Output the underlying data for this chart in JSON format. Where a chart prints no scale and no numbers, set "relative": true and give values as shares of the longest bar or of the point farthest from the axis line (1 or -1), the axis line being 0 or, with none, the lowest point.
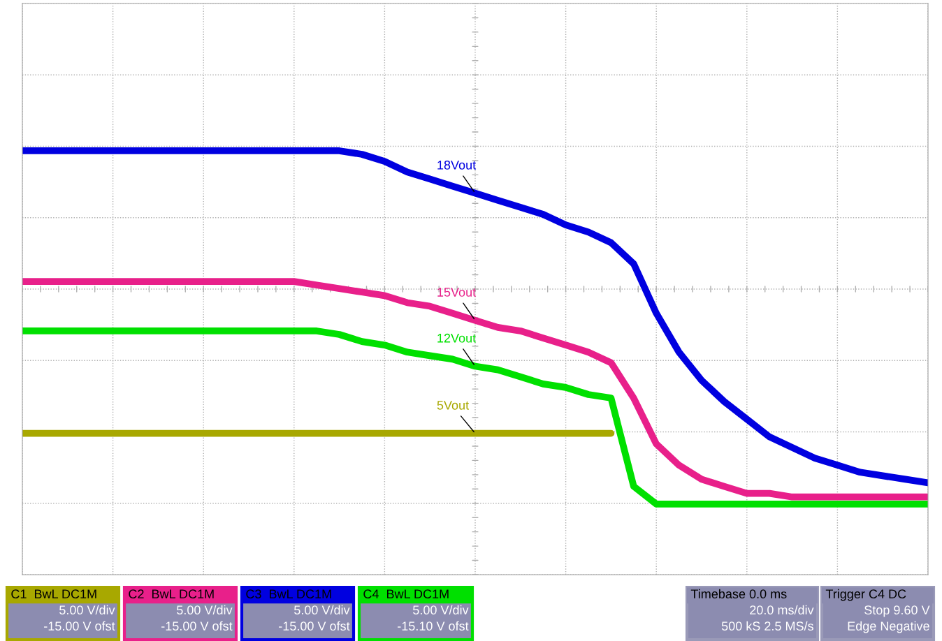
{
  "chart_data": {
    "type": "line",
    "relative": true,
    "grid": true,
    "legend": false,
    "categories": [
      null,
      null,
      null,
      null,
      null,
      null,
      null,
      null,
      null,
      null,
      null,
      null,
      null,
      null,
      null,
      null,
      null,
      null,
      null,
      null,
      null,
      null,
      null,
      null,
      null,
      null,
      null,
      null,
      null,
      null,
      null,
      null,
      null,
      null,
      null,
      null,
      null,
      null,
      null,
      null,
      null
    ],
    "series": [
      {
        "name": "5Vout",
        "color": "#a8a800",
        "values": [
          0.2,
          0.2,
          0.2,
          0.2,
          0.2,
          0.2,
          0.2,
          0.2,
          0.2,
          0.2,
          0.2,
          0.2,
          0.2,
          0.2,
          0.2,
          0.2,
          0.2,
          0.2,
          0.2,
          0.2,
          0.2,
          0.2,
          0.2,
          0.2,
          0.2,
          0.2,
          0.2,
          null,
          null,
          null,
          null,
          null,
          null,
          null,
          null,
          null,
          null,
          null,
          null,
          null,
          null
        ]
      },
      {
        "name": "15Vout",
        "color": "#e8208a",
        "values": [
          0.63,
          0.63,
          0.63,
          0.63,
          0.63,
          0.63,
          0.63,
          0.63,
          0.63,
          0.63,
          0.63,
          0.63,
          0.63,
          0.62,
          0.61,
          0.6,
          0.59,
          0.57,
          0.56,
          0.54,
          0.52,
          0.5,
          0.49,
          0.47,
          0.45,
          0.43,
          0.4,
          0.3,
          0.17,
          0.11,
          0.07,
          0.05,
          0.03,
          0.03,
          0.02,
          0.02,
          0.02,
          0.02,
          0.02,
          0.02,
          0.02
        ]
      },
      {
        "name": "18Vout",
        "color": "#0000e0",
        "values": [
          1.0,
          1.0,
          1.0,
          1.0,
          1.0,
          1.0,
          1.0,
          1.0,
          1.0,
          1.0,
          1.0,
          1.0,
          1.0,
          1.0,
          1.0,
          0.99,
          0.97,
          0.94,
          0.92,
          0.9,
          0.88,
          0.86,
          0.84,
          0.82,
          0.79,
          0.77,
          0.74,
          0.68,
          0.54,
          0.43,
          0.35,
          0.29,
          0.24,
          0.19,
          0.16,
          0.13,
          0.11,
          0.09,
          0.08,
          0.07,
          0.06
        ]
      },
      {
        "name": "12Vout",
        "color": "#00e000",
        "values": [
          0.49,
          0.49,
          0.49,
          0.49,
          0.49,
          0.49,
          0.49,
          0.49,
          0.49,
          0.49,
          0.49,
          0.49,
          0.49,
          0.49,
          0.48,
          0.46,
          0.45,
          0.43,
          0.42,
          0.41,
          0.39,
          0.38,
          0.36,
          0.34,
          0.33,
          0.31,
          0.3,
          0.05,
          0,
          0,
          0,
          0,
          0,
          0,
          0,
          0,
          0,
          0,
          0,
          0,
          0
        ]
      }
    ],
    "annotations": [
      "C1  BwL DC1M\n5.00 V/div\n-15.00 V ofst",
      "C2  BwL DC1M\n5.00 V/div\n-15.00 V ofst",
      "C3  BwL DC1M\n5.00 V/div\n-15.00 V ofst",
      "C4  BwL DC1M\n5.00 V/div\n-15.10 V ofst",
      "Timebase 0.0 ms\n20.0 ms/div\n500 kS 2.5 MS/s",
      "Trigger C4 DC\nStop 9.60 V\nEdge Negative"
    ]
  }
}
